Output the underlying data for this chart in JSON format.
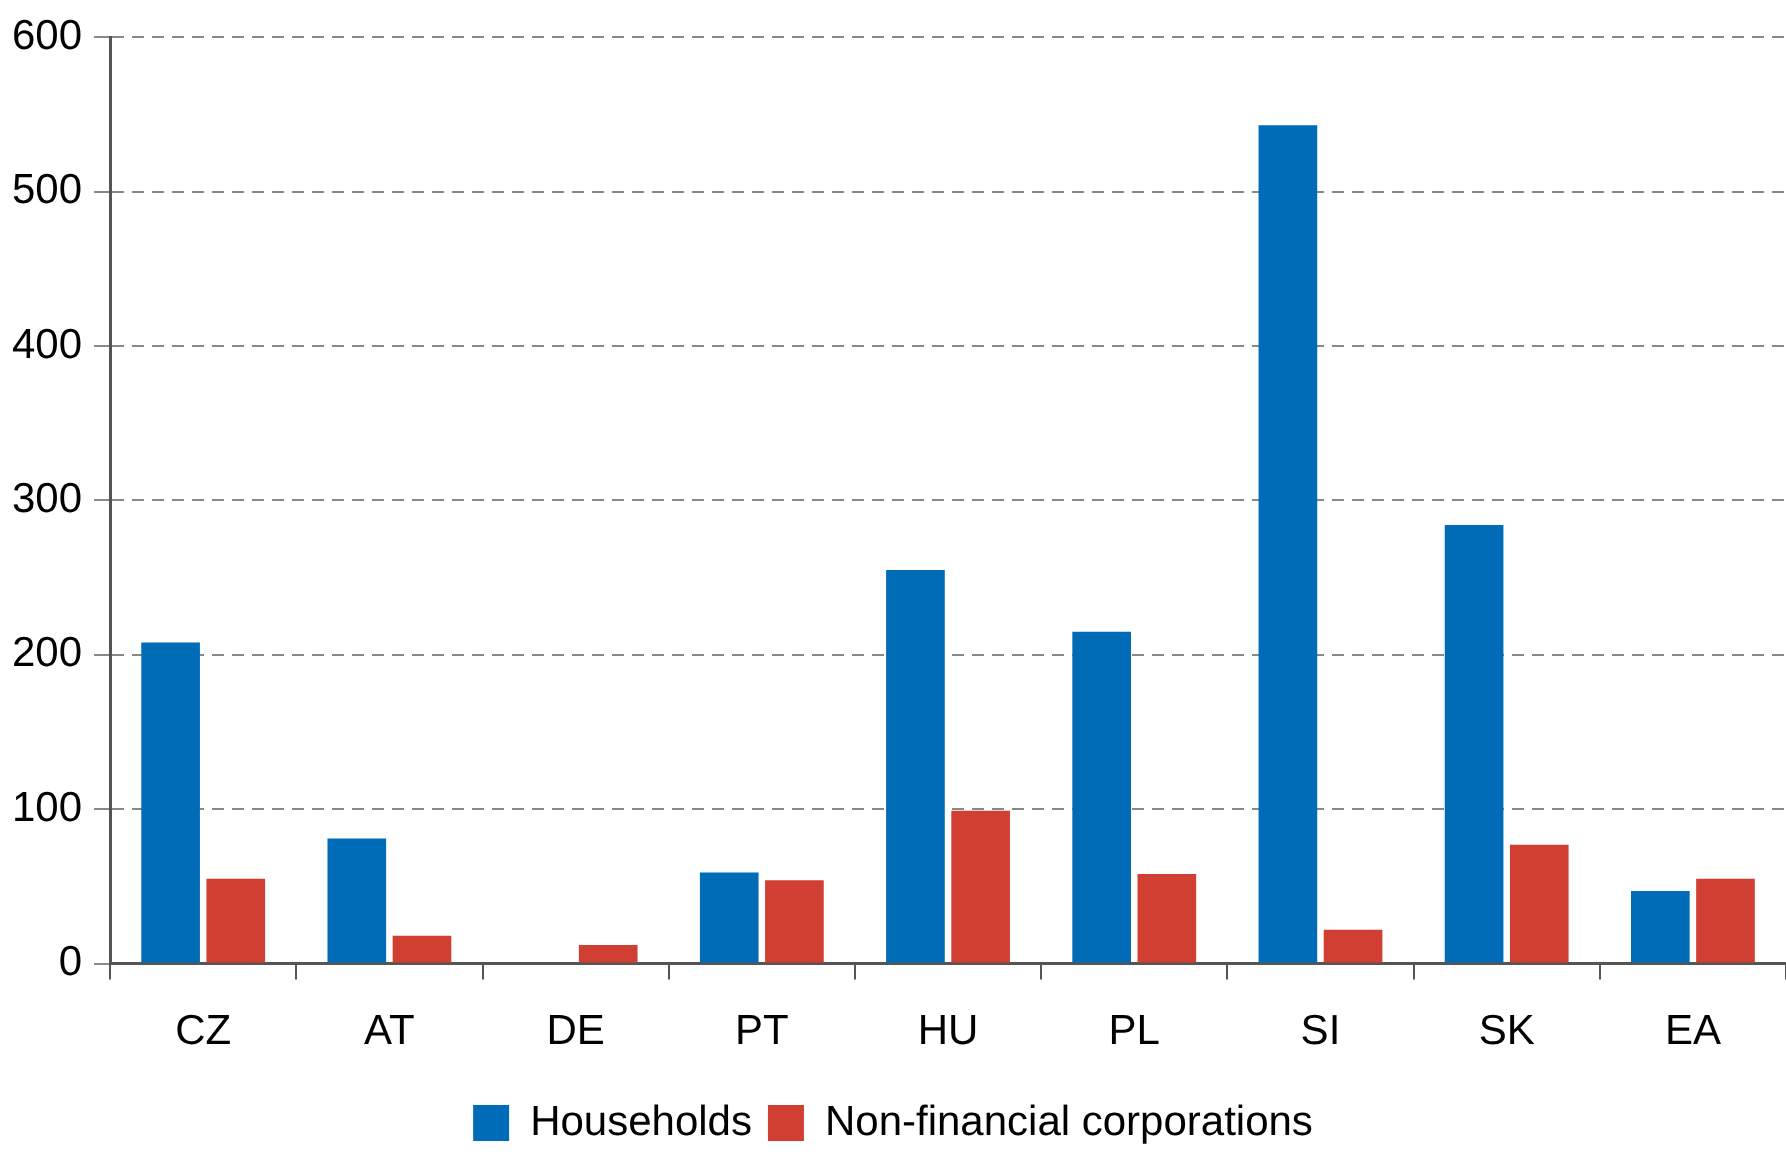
{
  "chart_data": {
    "type": "bar",
    "categories": [
      "CZ",
      "AT",
      "DE",
      "PT",
      "HU",
      "PL",
      "SI",
      "SK",
      "EA"
    ],
    "series": [
      {
        "name": "Households",
        "color": "#006bb6",
        "values": [
          208,
          81,
          0,
          59,
          255,
          215,
          543,
          284,
          47
        ]
      },
      {
        "name": "Non-financial corporations",
        "color": "#d03f31",
        "values": [
          55,
          18,
          12,
          54,
          99,
          58,
          22,
          77,
          55
        ]
      }
    ],
    "ylim": [
      0,
      600
    ],
    "yticks": [
      0,
      100,
      200,
      300,
      400,
      500,
      600
    ],
    "grid": "y",
    "legend": "bottom"
  }
}
